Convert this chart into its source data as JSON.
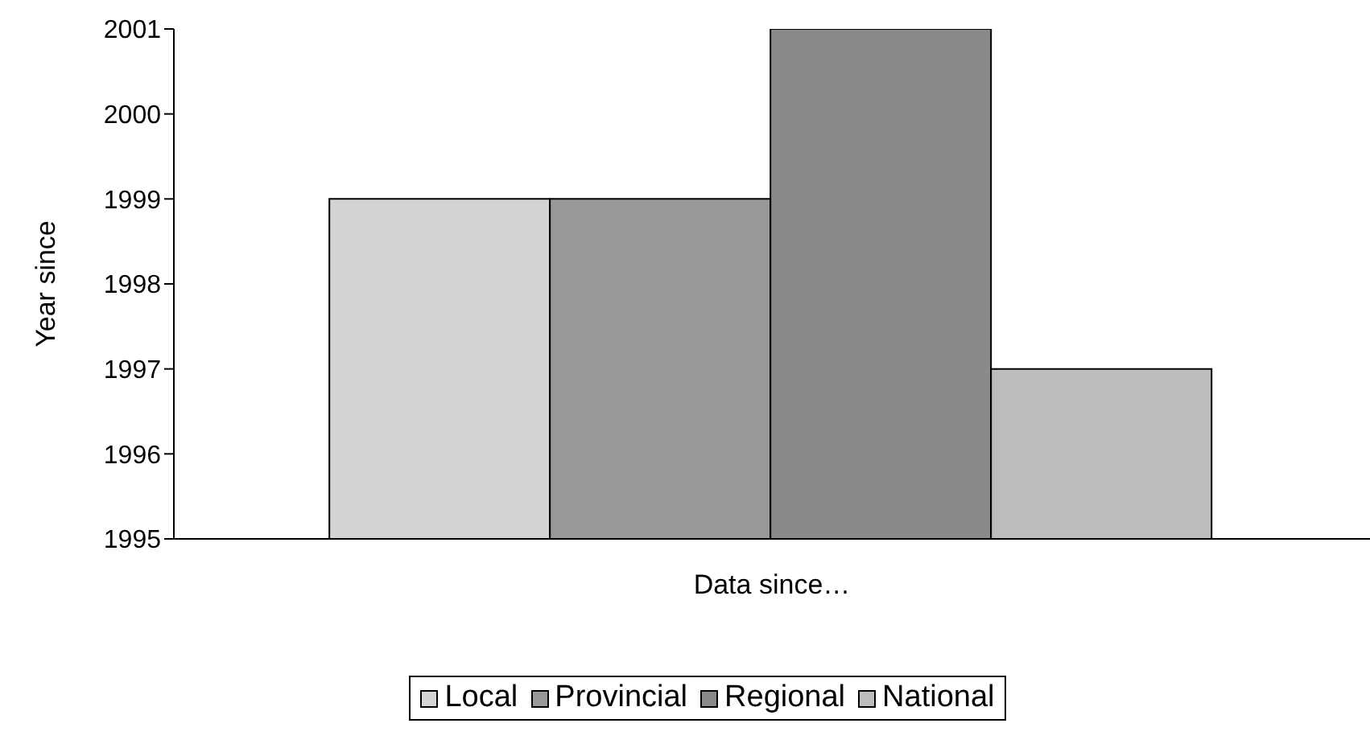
{
  "chart_data": {
    "type": "bar",
    "xlabel": "Data since…",
    "ylabel": "Year since",
    "categories": [
      null
    ],
    "series": [
      {
        "name": "Local",
        "color": "#d4d4d4",
        "values": [
          1999
        ]
      },
      {
        "name": "Provincial",
        "color": "#999999",
        "values": [
          1999
        ]
      },
      {
        "name": "Regional",
        "color": "#8a8a8a",
        "values": [
          2001
        ]
      },
      {
        "name": "National",
        "color": "#bdbdbd",
        "values": [
          1997
        ]
      }
    ],
    "ylim": [
      1995,
      2001
    ],
    "yticks": [
      1995,
      1996,
      1997,
      1998,
      1999,
      2000,
      2001
    ],
    "grid": false,
    "legend": "bottom"
  }
}
